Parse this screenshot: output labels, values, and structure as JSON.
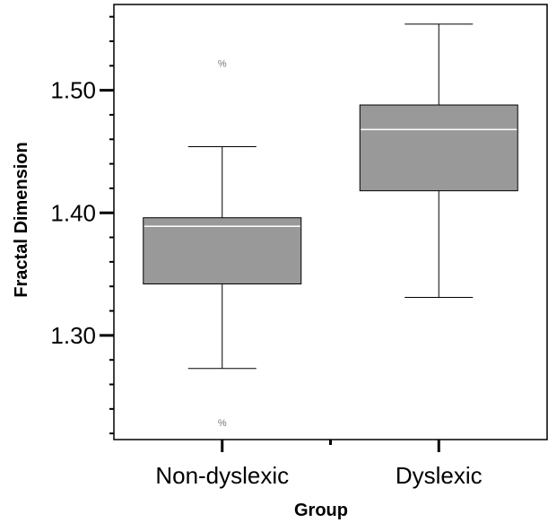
{
  "chart_data": {
    "type": "box",
    "xlabel": "Group",
    "ylabel": "Fractal Dimension",
    "ylim": [
      1.215,
      1.57
    ],
    "yticks": [
      {
        "value": 1.3,
        "label": "1.30"
      },
      {
        "value": 1.4,
        "label": "1.40"
      },
      {
        "value": 1.5,
        "label": "1.50"
      }
    ],
    "minor_tick_step": 0.02,
    "grid": false,
    "box_color": "#999999",
    "median_color": "#ffffff",
    "groups": [
      {
        "category": "Non-dyslexic",
        "whisker_low": 1.273,
        "q1": 1.342,
        "median": 1.389,
        "q3": 1.396,
        "whisker_high": 1.454,
        "outliers": [
          {
            "value": 1.522,
            "label": "%"
          },
          {
            "value": 1.229,
            "label": "%"
          }
        ]
      },
      {
        "category": "Dyslexic",
        "whisker_low": 1.331,
        "q1": 1.418,
        "median": 1.468,
        "q3": 1.488,
        "whisker_high": 1.554,
        "outliers": []
      }
    ]
  }
}
